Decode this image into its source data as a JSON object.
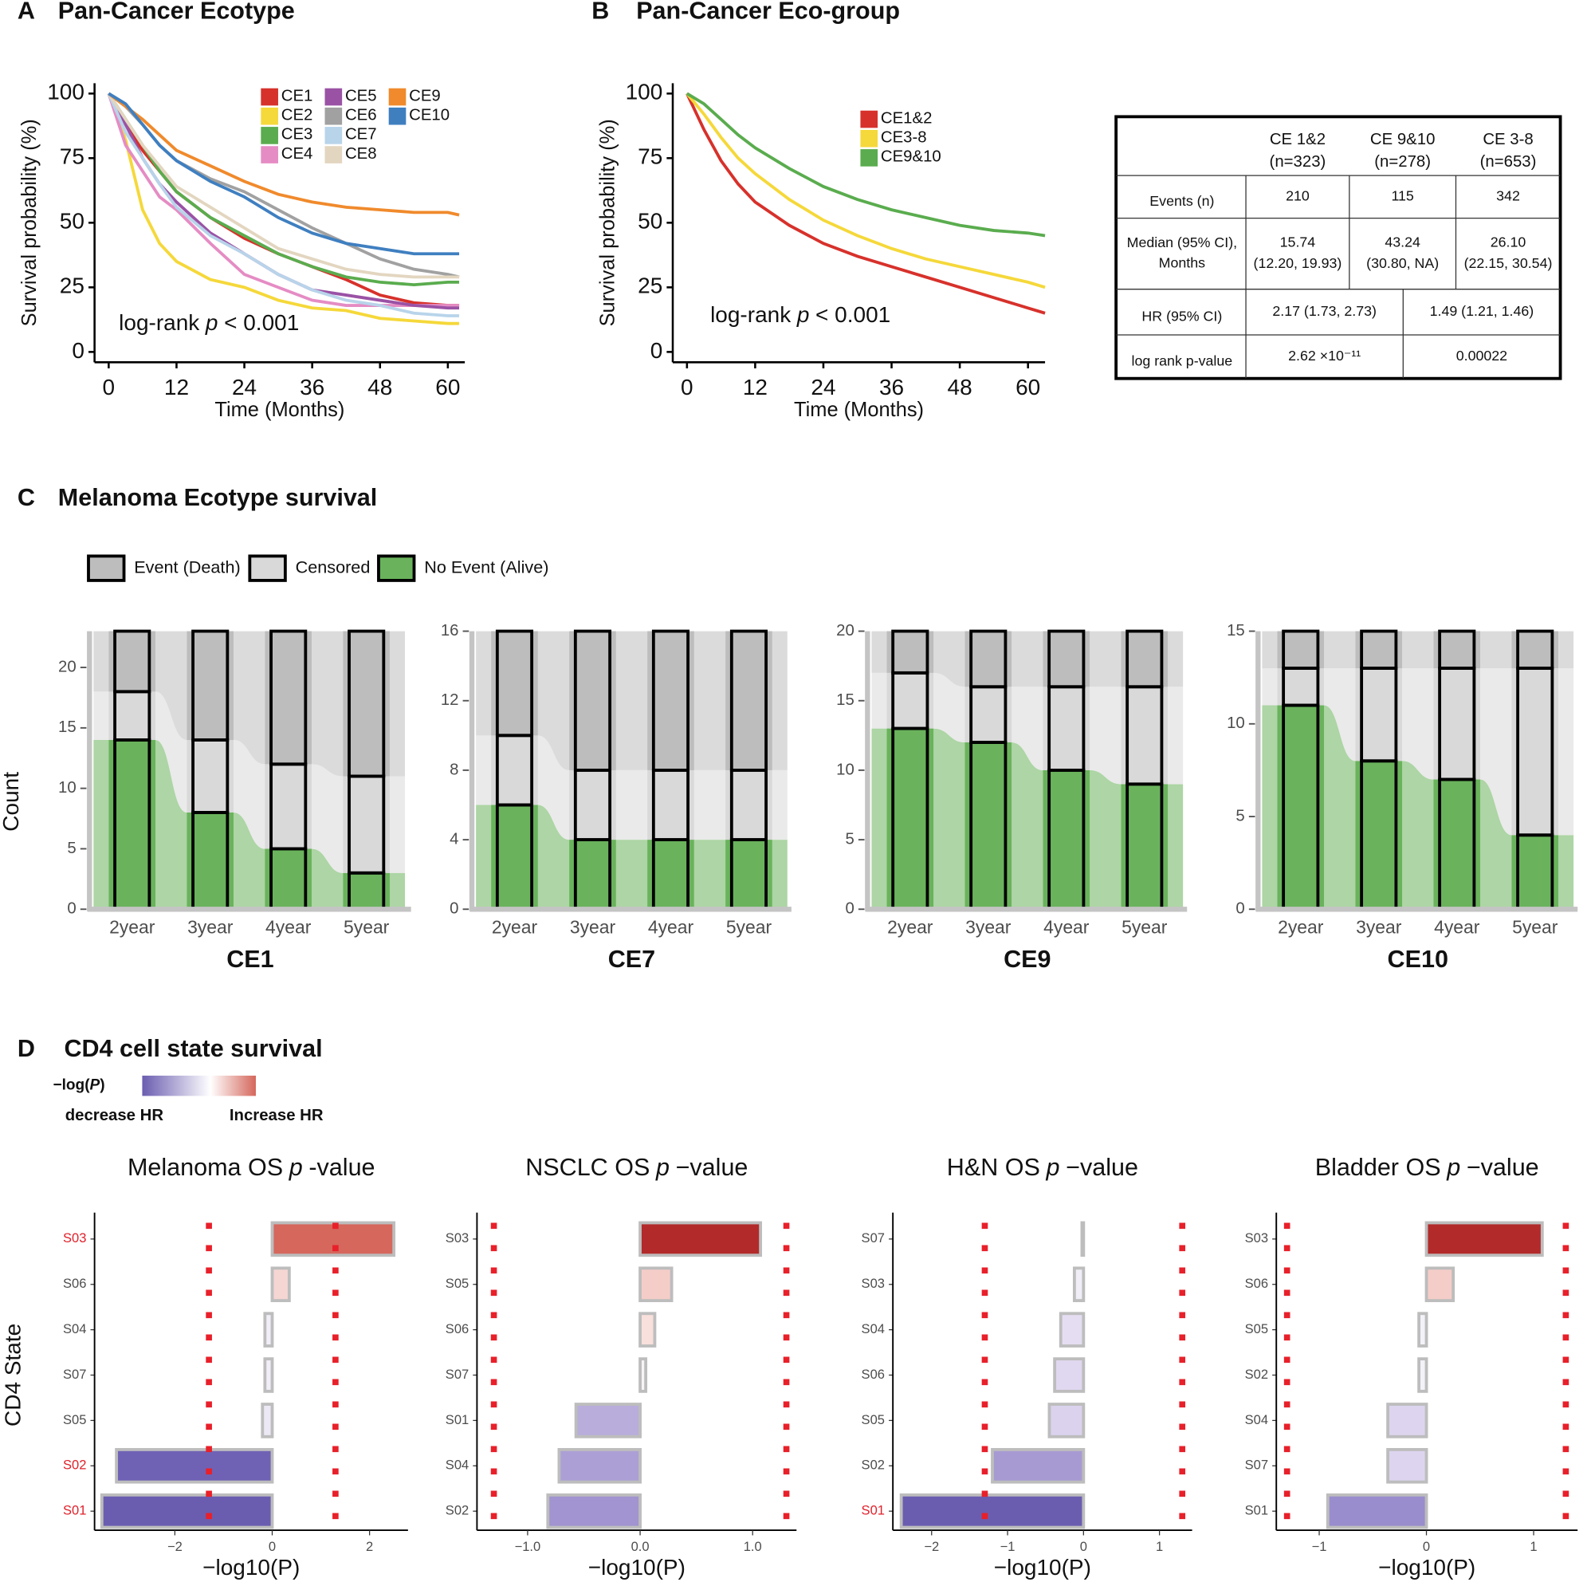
{
  "chart_data": [
    {
      "type": "survival",
      "panel_label": "A",
      "title": "Pan-Cancer Ecotype",
      "xlabel": "Time (Months)",
      "ylabel": "Survival probability (%)",
      "annotation": [
        "log-rank",
        "p",
        "< 0.001"
      ],
      "x": [
        0,
        3,
        6,
        9,
        12,
        18,
        24,
        30,
        36,
        42,
        48,
        54,
        60,
        62
      ],
      "xlim": [
        -2.5,
        63
      ],
      "xticks": [
        0,
        12,
        24,
        36,
        48,
        60
      ],
      "ylim": [
        -4,
        104
      ],
      "yticks": [
        0,
        25,
        50,
        75,
        100
      ],
      "series": [
        {
          "name": "CE1",
          "color": "#d7312b",
          "values": [
            100,
            88,
            78,
            70,
            62,
            52,
            44,
            38,
            33,
            28,
            22,
            19,
            18,
            18
          ]
        },
        {
          "name": "CE2",
          "color": "#f5d83a",
          "values": [
            100,
            82,
            55,
            42,
            35,
            28,
            25,
            20,
            17,
            16,
            13,
            12,
            11,
            11
          ]
        },
        {
          "name": "CE3",
          "color": "#5aac4e",
          "values": [
            100,
            90,
            80,
            70,
            62,
            52,
            45,
            38,
            33,
            29,
            27,
            26,
            27,
            27
          ]
        },
        {
          "name": "CE4",
          "color": "#e58cc4",
          "values": [
            100,
            80,
            70,
            60,
            55,
            42,
            30,
            25,
            20,
            18,
            18,
            18,
            18,
            18
          ]
        },
        {
          "name": "CE5",
          "color": "#9a52a5",
          "values": [
            100,
            88,
            75,
            65,
            58,
            46,
            38,
            30,
            24,
            22,
            20,
            18,
            17,
            17
          ]
        },
        {
          "name": "CE6",
          "color": "#a1a1a1",
          "values": [
            100,
            95,
            88,
            80,
            74,
            67,
            62,
            55,
            48,
            42,
            36,
            32,
            30,
            29
          ]
        },
        {
          "name": "CE7",
          "color": "#b8d4ea",
          "values": [
            100,
            85,
            75,
            65,
            56,
            45,
            38,
            30,
            24,
            20,
            18,
            15,
            14,
            14
          ]
        },
        {
          "name": "CE8",
          "color": "#e3d6c0",
          "values": [
            100,
            90,
            80,
            72,
            64,
            56,
            48,
            40,
            36,
            32,
            30,
            29,
            29,
            29
          ]
        },
        {
          "name": "CE9",
          "color": "#f08a2c",
          "values": [
            100,
            95,
            90,
            84,
            78,
            72,
            66,
            61,
            58,
            56,
            55,
            54,
            54,
            53
          ]
        },
        {
          "name": "CE10",
          "color": "#3f7fc0",
          "values": [
            100,
            96,
            88,
            80,
            74,
            66,
            60,
            52,
            46,
            42,
            40,
            38,
            38,
            38
          ]
        }
      ]
    },
    {
      "type": "survival",
      "panel_label": "B",
      "title": "Pan-Cancer Eco-group",
      "xlabel": "Time (Months)",
      "ylabel": "Survival probability (%)",
      "annotation": [
        "log-rank",
        "p",
        "< 0.001"
      ],
      "x": [
        0,
        3,
        6,
        9,
        12,
        18,
        24,
        30,
        36,
        42,
        48,
        54,
        60,
        63
      ],
      "xlim": [
        -2.5,
        63
      ],
      "xticks": [
        0,
        12,
        24,
        36,
        48,
        60
      ],
      "ylim": [
        -4,
        104
      ],
      "yticks": [
        0,
        25,
        50,
        75,
        100
      ],
      "series": [
        {
          "name": "CE1&2",
          "color": "#d7312b",
          "values": [
            100,
            86,
            74,
            65,
            58,
            49,
            42,
            37,
            33,
            29,
            25,
            21,
            17,
            15
          ]
        },
        {
          "name": "CE3-8",
          "color": "#f5d83a",
          "values": [
            100,
            92,
            83,
            75,
            69,
            59,
            51,
            45,
            40,
            36,
            33,
            30,
            27,
            25
          ]
        },
        {
          "name": "CE9&10",
          "color": "#5aac4e",
          "values": [
            100,
            96,
            90,
            84,
            79,
            71,
            64,
            59,
            55,
            52,
            49,
            47,
            46,
            45
          ]
        }
      ]
    },
    {
      "type": "stacked_bar",
      "title": "CE1",
      "ylabel": "Count",
      "categories": [
        "2year",
        "3year",
        "4year",
        "5year"
      ],
      "ylim": [
        0,
        23
      ],
      "yticks": [
        0,
        5,
        10,
        15,
        20
      ],
      "series": [
        {
          "values": [
            5,
            9,
            11,
            12
          ]
        },
        {
          "values": [
            4,
            6,
            7,
            8
          ]
        },
        {
          "values": [
            14,
            8,
            5,
            3
          ]
        }
      ]
    },
    {
      "type": "stacked_bar",
      "title": "CE7",
      "categories": [
        "2year",
        "3year",
        "4year",
        "5year"
      ],
      "ylim": [
        0,
        16
      ],
      "yticks": [
        0,
        4,
        8,
        12,
        16
      ],
      "series": [
        {
          "values": [
            6,
            8,
            8,
            8
          ]
        },
        {
          "values": [
            4,
            4,
            4,
            4
          ]
        },
        {
          "values": [
            6,
            4,
            4,
            4
          ]
        }
      ]
    },
    {
      "type": "stacked_bar",
      "title": "CE9",
      "categories": [
        "2year",
        "3year",
        "4year",
        "5year"
      ],
      "ylim": [
        0,
        20
      ],
      "yticks": [
        0,
        5,
        10,
        15,
        20
      ],
      "series": [
        {
          "values": [
            3,
            4,
            4,
            4
          ]
        },
        {
          "values": [
            4,
            4,
            6,
            7
          ]
        },
        {
          "values": [
            13,
            12,
            10,
            9
          ]
        }
      ]
    },
    {
      "type": "stacked_bar",
      "title": "CE10",
      "categories": [
        "2year",
        "3year",
        "4year",
        "5year"
      ],
      "ylim": [
        0,
        15
      ],
      "yticks": [
        0,
        5,
        10,
        15
      ],
      "series": [
        {
          "values": [
            2,
            2,
            2,
            2
          ]
        },
        {
          "values": [
            2,
            5,
            6,
            9
          ]
        },
        {
          "values": [
            11,
            8,
            7,
            4
          ]
        }
      ]
    },
    {
      "type": "hbar",
      "title": [
        "Melanoma OS",
        "p",
        "-value"
      ],
      "xlabel": "−log10(P)",
      "ylabel": "CD4 State",
      "threshold": 1.3,
      "categories": [
        "S03",
        "S06",
        "S04",
        "S07",
        "S05",
        "S02",
        "S01"
      ],
      "values": [
        2.5,
        0.35,
        -0.15,
        -0.15,
        -0.2,
        -3.2,
        -3.5
      ],
      "colors": [
        "#d5675c",
        "#f5d6d3",
        "#f1eef7",
        "#f1eef7",
        "#ece8f5",
        "#6f62b5",
        "#6a5db0"
      ],
      "label_colors": [
        "#e0202a",
        "#4d4d4d",
        "#4d4d4d",
        "#4d4d4d",
        "#4d4d4d",
        "#e0202a",
        "#e0202a"
      ],
      "xlim": [
        -3.65,
        2.79
      ],
      "xticks": [
        {
          "value": -2,
          "label": "−2"
        },
        0,
        2
      ]
    },
    {
      "type": "hbar",
      "title": [
        "NSCLC OS",
        "p",
        "−value"
      ],
      "xlabel": "−log10(P)",
      "threshold": 1.3,
      "categories": [
        "S03",
        "S05",
        "S06",
        "S07",
        "S01",
        "S04",
        "S02"
      ],
      "values": [
        1.07,
        0.28,
        0.13,
        0.05,
        -0.57,
        -0.72,
        -0.82
      ],
      "colors": [
        "#b22a2a",
        "#f5cdc8",
        "#f8e0dc",
        "#f8f4f4",
        "#b9addb",
        "#ac9fd6",
        "#a194d0"
      ],
      "label_colors": [
        "#4d4d4d",
        "#4d4d4d",
        "#4d4d4d",
        "#4d4d4d",
        "#4d4d4d",
        "#4d4d4d",
        "#4d4d4d"
      ],
      "xlim": [
        -1.45,
        1.39
      ],
      "xticks": [
        {
          "value": -1,
          "label": "−1.0"
        },
        {
          "value": 0,
          "label": "0.0"
        },
        {
          "value": 1,
          "label": "1.0"
        }
      ]
    },
    {
      "type": "hbar",
      "title": [
        "H&N OS",
        "p",
        "−value"
      ],
      "xlabel": "−log10(P)",
      "threshold": 1.3,
      "categories": [
        "S07",
        "S03",
        "S04",
        "S06",
        "S05",
        "S02",
        "S01"
      ],
      "values": [
        -0.02,
        -0.12,
        -0.3,
        -0.38,
        -0.45,
        -1.2,
        -2.4
      ],
      "colors": [
        "#f4f2f9",
        "#f1eef7",
        "#e5def2",
        "#e0d8f0",
        "#dbd2ee",
        "#a79ad3",
        "#6a5db0"
      ],
      "label_colors": [
        "#4d4d4d",
        "#4d4d4d",
        "#4d4d4d",
        "#4d4d4d",
        "#4d4d4d",
        "#4d4d4d",
        "#e0202a"
      ],
      "xlim": [
        -2.51,
        1.43
      ],
      "xticks": [
        {
          "value": -2,
          "label": "−2"
        },
        {
          "value": -1,
          "label": "−1"
        },
        0,
        1
      ]
    },
    {
      "type": "hbar",
      "title": [
        "Bladder OS",
        "p",
        "−value"
      ],
      "xlabel": "−log10(P)",
      "threshold": 1.3,
      "categories": [
        "S03",
        "S06",
        "S05",
        "S02",
        "S04",
        "S07",
        "S01"
      ],
      "values": [
        1.08,
        0.25,
        -0.07,
        -0.07,
        -0.36,
        -0.36,
        -0.92
      ],
      "colors": [
        "#b22a2a",
        "#f5cdc8",
        "#f4f2f9",
        "#f4f2f9",
        "#ddd4ef",
        "#ddd4ef",
        "#9a8dcd"
      ],
      "label_colors": [
        "#4d4d4d",
        "#4d4d4d",
        "#4d4d4d",
        "#4d4d4d",
        "#4d4d4d",
        "#4d4d4d",
        "#4d4d4d"
      ],
      "xlim": [
        -1.4,
        1.41
      ],
      "xticks": [
        {
          "value": -1,
          "label": "−1"
        },
        0,
        1
      ]
    }
  ],
  "table": {
    "columns": [
      [
        "CE 1&2",
        "(n=323)"
      ],
      [
        "CE 9&10",
        "(n=278)"
      ],
      [
        "CE 3-8",
        "(n=653)"
      ]
    ],
    "rows": [
      {
        "label": [
          "Events (n)"
        ],
        "cells": [
          [
            "210"
          ],
          [
            "115"
          ],
          [
            "342"
          ]
        ]
      },
      {
        "label": [
          "Median (95% CI),",
          "Months"
        ],
        "cells": [
          [
            "15.74",
            "(12.20, 19.93)"
          ],
          [
            "43.24",
            "(30.80, NA)"
          ],
          [
            "26.10",
            "(22.15, 30.54)"
          ]
        ]
      },
      {
        "label": [
          "HR (95% CI)"
        ],
        "cells": [
          [
            "2.17 (1.73, 2.73)"
          ],
          [
            "1.49 (1.21, 1.46)"
          ]
        ]
      },
      {
        "label": [
          "log rank p-value"
        ],
        "cells": [
          [
            "2.62 ×10⁻¹¹"
          ],
          [
            "0.00022"
          ]
        ]
      }
    ]
  },
  "panel_c": {
    "label": "C",
    "title": "Melanoma Ecotype survival",
    "legend": [
      {
        "name": "Event (Death)",
        "color": "#bdbdbd"
      },
      {
        "name": "Censored",
        "color": "#d9d9d9"
      },
      {
        "name": "No Event (Alive)",
        "color": "#6ab35c"
      }
    ]
  },
  "panel_d": {
    "label": "D",
    "title": "CD4 cell state survival",
    "scale_title": [
      "−log(",
      "P",
      ")"
    ],
    "low_label": "decrease HR",
    "high_label": "Increase HR",
    "gradient": [
      "#6a5db0",
      "#ffffff",
      "#d5675c"
    ]
  }
}
